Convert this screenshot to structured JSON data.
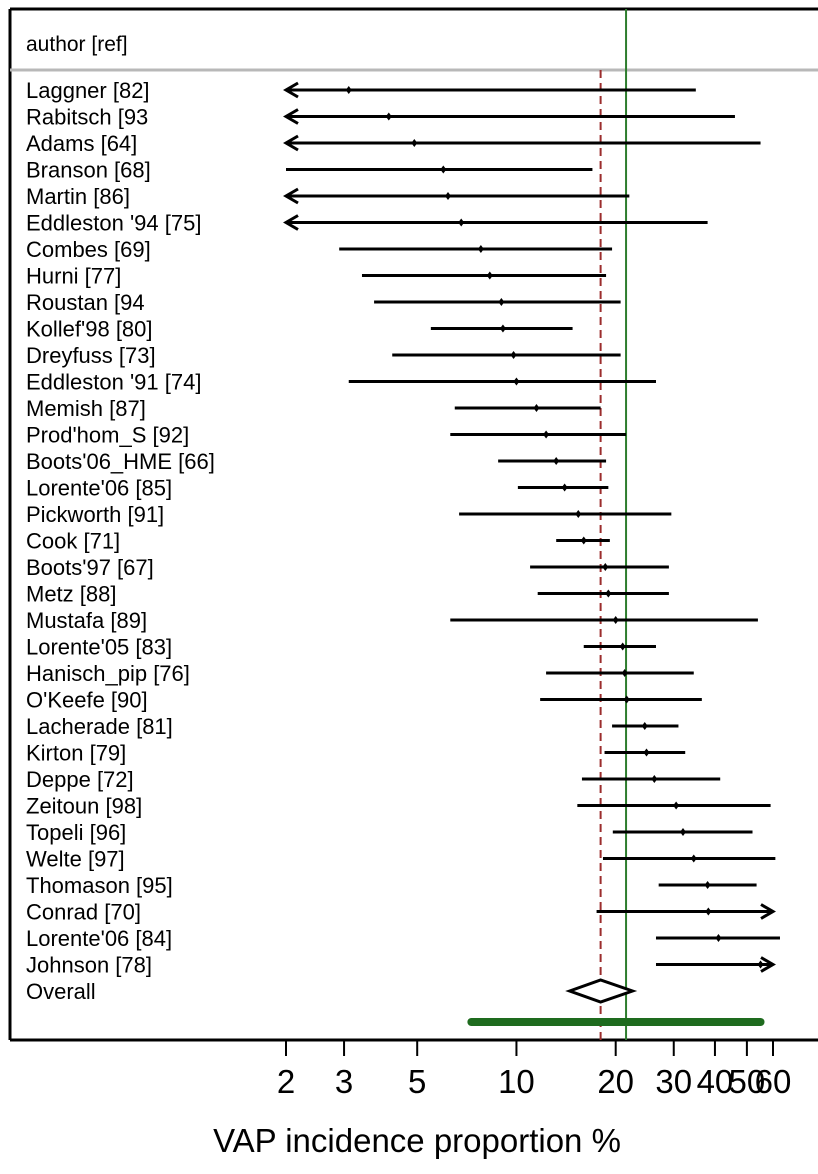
{
  "chart_data": {
    "type": "forest",
    "title": "",
    "header": "author [ref]",
    "xlabel": "VAP incidence proportion %",
    "xscale": "log",
    "xlim": [
      2,
      60
    ],
    "ticks": [
      2,
      3,
      5,
      10,
      20,
      30,
      40,
      50,
      60
    ],
    "tick_labels": [
      "2",
      "3",
      "5",
      "10",
      "20",
      "30",
      "40",
      "50",
      "60"
    ],
    "reference_lines": {
      "dashed_red": 18,
      "solid_green": 21.5
    },
    "studies": [
      {
        "label": "Laggner  [82]",
        "est": 3.1,
        "lo": 2,
        "hi": 35,
        "arrow_lo": true,
        "arrow_hi": false
      },
      {
        "label": "Rabitsch  [93",
        "est": 4.1,
        "lo": 2,
        "hi": 46,
        "arrow_lo": true,
        "arrow_hi": false
      },
      {
        "label": "Adams  [64]",
        "est": 4.9,
        "lo": 2,
        "hi": 55,
        "arrow_lo": true,
        "arrow_hi": false
      },
      {
        "label": "Branson  [68]",
        "est": 6.0,
        "lo": 2,
        "hi": 17,
        "arrow_lo": false,
        "arrow_hi": false
      },
      {
        "label": "Martin  [86]",
        "est": 6.2,
        "lo": 2,
        "hi": 22,
        "arrow_lo": true,
        "arrow_hi": false
      },
      {
        "label": "Eddleston  '94  [75]",
        "est": 6.8,
        "lo": 2,
        "hi": 38,
        "arrow_lo": true,
        "arrow_hi": false
      },
      {
        "label": "Combes  [69]",
        "est": 7.8,
        "lo": 2.9,
        "hi": 19.5,
        "arrow_lo": false,
        "arrow_hi": false
      },
      {
        "label": "Hurni  [77]",
        "est": 8.3,
        "lo": 3.4,
        "hi": 18.7,
        "arrow_lo": false,
        "arrow_hi": false
      },
      {
        "label": "Roustan  [94",
        "est": 9.0,
        "lo": 3.7,
        "hi": 20.7,
        "arrow_lo": false,
        "arrow_hi": false
      },
      {
        "label": "Kollef'98  [80]",
        "est": 9.1,
        "lo": 5.5,
        "hi": 14.8,
        "arrow_lo": false,
        "arrow_hi": false
      },
      {
        "label": "Dreyfuss  [73]",
        "est": 9.8,
        "lo": 4.2,
        "hi": 20.7,
        "arrow_lo": false,
        "arrow_hi": false
      },
      {
        "label": "Eddleston  '91  [74]",
        "est": 10.0,
        "lo": 3.1,
        "hi": 26.5,
        "arrow_lo": false,
        "arrow_hi": false
      },
      {
        "label": "Memish  [87]",
        "est": 11.5,
        "lo": 6.5,
        "hi": 18.0,
        "arrow_lo": false,
        "arrow_hi": false
      },
      {
        "label": "Prod'hom_S  [92]",
        "est": 12.3,
        "lo": 6.3,
        "hi": 21.5,
        "arrow_lo": false,
        "arrow_hi": false
      },
      {
        "label": "Boots'06_HME  [66]",
        "est": 13.2,
        "lo": 8.8,
        "hi": 18.7,
        "arrow_lo": false,
        "arrow_hi": false
      },
      {
        "label": "Lorente'06  [85]",
        "est": 14.0,
        "lo": 10.1,
        "hi": 19.0,
        "arrow_lo": false,
        "arrow_hi": false
      },
      {
        "label": "Pickworth  [91]",
        "est": 15.4,
        "lo": 6.7,
        "hi": 29.5,
        "arrow_lo": false,
        "arrow_hi": false
      },
      {
        "label": "Cook  [71]",
        "est": 16.0,
        "lo": 13.2,
        "hi": 19.2,
        "arrow_lo": false,
        "arrow_hi": false
      },
      {
        "label": "Boots'97  [67]",
        "est": 18.6,
        "lo": 11.0,
        "hi": 29.0,
        "arrow_lo": false,
        "arrow_hi": false
      },
      {
        "label": "Metz  [88]",
        "est": 19.0,
        "lo": 11.6,
        "hi": 29.0,
        "arrow_lo": false,
        "arrow_hi": false
      },
      {
        "label": "Mustafa  [89]",
        "est": 20.0,
        "lo": 6.3,
        "hi": 54.0,
        "arrow_lo": false,
        "arrow_hi": false
      },
      {
        "label": "Lorente'05  [83]",
        "est": 21.0,
        "lo": 16.0,
        "hi": 26.5,
        "arrow_lo": false,
        "arrow_hi": false
      },
      {
        "label": "Hanisch_pip  [76]",
        "est": 21.3,
        "lo": 12.3,
        "hi": 34.5,
        "arrow_lo": false,
        "arrow_hi": false
      },
      {
        "label": "O'Keefe  [90]",
        "est": 21.6,
        "lo": 11.8,
        "hi": 36.5,
        "arrow_lo": false,
        "arrow_hi": false
      },
      {
        "label": "Lacherade  [81]",
        "est": 24.5,
        "lo": 19.5,
        "hi": 31.0,
        "arrow_lo": false,
        "arrow_hi": false
      },
      {
        "label": "Kirton  [79]",
        "est": 24.8,
        "lo": 18.5,
        "hi": 32.5,
        "arrow_lo": false,
        "arrow_hi": false
      },
      {
        "label": "Deppe  [72]",
        "est": 26.2,
        "lo": 15.8,
        "hi": 41.5,
        "arrow_lo": false,
        "arrow_hi": false
      },
      {
        "label": "Zeitoun  [98]",
        "est": 30.5,
        "lo": 15.3,
        "hi": 59.0,
        "arrow_lo": false,
        "arrow_hi": false
      },
      {
        "label": "Topeli  [96]",
        "est": 32.0,
        "lo": 19.6,
        "hi": 52.0,
        "arrow_lo": false,
        "arrow_hi": false
      },
      {
        "label": "Welte  [97]",
        "est": 34.5,
        "lo": 18.3,
        "hi": 61.0,
        "arrow_lo": false,
        "arrow_hi": false
      },
      {
        "label": "Thomason  [95]",
        "est": 38.0,
        "lo": 27.0,
        "hi": 53.5,
        "arrow_lo": false,
        "arrow_hi": false
      },
      {
        "label": "Conrad  [70]",
        "est": 38.2,
        "lo": 17.5,
        "hi": 60,
        "arrow_lo": false,
        "arrow_hi": true
      },
      {
        "label": "Lorente'06  [84]",
        "est": 41.0,
        "lo": 26.5,
        "hi": 63.0,
        "arrow_lo": false,
        "arrow_hi": false
      },
      {
        "label": "Johnson  [78]",
        "est": 55.0,
        "lo": 26.5,
        "hi": 60,
        "arrow_lo": false,
        "arrow_hi": true
      }
    ],
    "overall": {
      "label": "Overall",
      "est": 18.0,
      "lo": 14.5,
      "hi": 22.5
    },
    "prediction_interval": {
      "lo": 7.3,
      "hi": 55.0
    }
  }
}
